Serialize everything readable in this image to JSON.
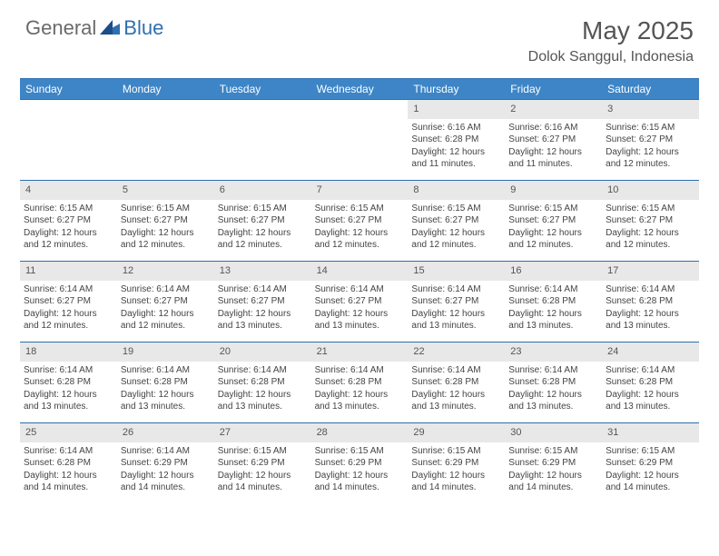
{
  "brand": {
    "part1": "General",
    "part2": "Blue"
  },
  "title": "May 2025",
  "location": "Dolok Sanggul, Indonesia",
  "colors": {
    "header_bg": "#3d85c6",
    "rule": "#2f6fb0",
    "daynum_bg": "#e8e8e8",
    "text": "#444444",
    "title_text": "#555555"
  },
  "day_labels": [
    "Sunday",
    "Monday",
    "Tuesday",
    "Wednesday",
    "Thursday",
    "Friday",
    "Saturday"
  ],
  "weeks": [
    [
      null,
      null,
      null,
      null,
      {
        "n": "1",
        "sr": "Sunrise: 6:16 AM",
        "ss": "Sunset: 6:28 PM",
        "d1": "Daylight: 12 hours",
        "d2": "and 11 minutes."
      },
      {
        "n": "2",
        "sr": "Sunrise: 6:16 AM",
        "ss": "Sunset: 6:27 PM",
        "d1": "Daylight: 12 hours",
        "d2": "and 11 minutes."
      },
      {
        "n": "3",
        "sr": "Sunrise: 6:15 AM",
        "ss": "Sunset: 6:27 PM",
        "d1": "Daylight: 12 hours",
        "d2": "and 12 minutes."
      }
    ],
    [
      {
        "n": "4",
        "sr": "Sunrise: 6:15 AM",
        "ss": "Sunset: 6:27 PM",
        "d1": "Daylight: 12 hours",
        "d2": "and 12 minutes."
      },
      {
        "n": "5",
        "sr": "Sunrise: 6:15 AM",
        "ss": "Sunset: 6:27 PM",
        "d1": "Daylight: 12 hours",
        "d2": "and 12 minutes."
      },
      {
        "n": "6",
        "sr": "Sunrise: 6:15 AM",
        "ss": "Sunset: 6:27 PM",
        "d1": "Daylight: 12 hours",
        "d2": "and 12 minutes."
      },
      {
        "n": "7",
        "sr": "Sunrise: 6:15 AM",
        "ss": "Sunset: 6:27 PM",
        "d1": "Daylight: 12 hours",
        "d2": "and 12 minutes."
      },
      {
        "n": "8",
        "sr": "Sunrise: 6:15 AM",
        "ss": "Sunset: 6:27 PM",
        "d1": "Daylight: 12 hours",
        "d2": "and 12 minutes."
      },
      {
        "n": "9",
        "sr": "Sunrise: 6:15 AM",
        "ss": "Sunset: 6:27 PM",
        "d1": "Daylight: 12 hours",
        "d2": "and 12 minutes."
      },
      {
        "n": "10",
        "sr": "Sunrise: 6:15 AM",
        "ss": "Sunset: 6:27 PM",
        "d1": "Daylight: 12 hours",
        "d2": "and 12 minutes."
      }
    ],
    [
      {
        "n": "11",
        "sr": "Sunrise: 6:14 AM",
        "ss": "Sunset: 6:27 PM",
        "d1": "Daylight: 12 hours",
        "d2": "and 12 minutes."
      },
      {
        "n": "12",
        "sr": "Sunrise: 6:14 AM",
        "ss": "Sunset: 6:27 PM",
        "d1": "Daylight: 12 hours",
        "d2": "and 12 minutes."
      },
      {
        "n": "13",
        "sr": "Sunrise: 6:14 AM",
        "ss": "Sunset: 6:27 PM",
        "d1": "Daylight: 12 hours",
        "d2": "and 13 minutes."
      },
      {
        "n": "14",
        "sr": "Sunrise: 6:14 AM",
        "ss": "Sunset: 6:27 PM",
        "d1": "Daylight: 12 hours",
        "d2": "and 13 minutes."
      },
      {
        "n": "15",
        "sr": "Sunrise: 6:14 AM",
        "ss": "Sunset: 6:27 PM",
        "d1": "Daylight: 12 hours",
        "d2": "and 13 minutes."
      },
      {
        "n": "16",
        "sr": "Sunrise: 6:14 AM",
        "ss": "Sunset: 6:28 PM",
        "d1": "Daylight: 12 hours",
        "d2": "and 13 minutes."
      },
      {
        "n": "17",
        "sr": "Sunrise: 6:14 AM",
        "ss": "Sunset: 6:28 PM",
        "d1": "Daylight: 12 hours",
        "d2": "and 13 minutes."
      }
    ],
    [
      {
        "n": "18",
        "sr": "Sunrise: 6:14 AM",
        "ss": "Sunset: 6:28 PM",
        "d1": "Daylight: 12 hours",
        "d2": "and 13 minutes."
      },
      {
        "n": "19",
        "sr": "Sunrise: 6:14 AM",
        "ss": "Sunset: 6:28 PM",
        "d1": "Daylight: 12 hours",
        "d2": "and 13 minutes."
      },
      {
        "n": "20",
        "sr": "Sunrise: 6:14 AM",
        "ss": "Sunset: 6:28 PM",
        "d1": "Daylight: 12 hours",
        "d2": "and 13 minutes."
      },
      {
        "n": "21",
        "sr": "Sunrise: 6:14 AM",
        "ss": "Sunset: 6:28 PM",
        "d1": "Daylight: 12 hours",
        "d2": "and 13 minutes."
      },
      {
        "n": "22",
        "sr": "Sunrise: 6:14 AM",
        "ss": "Sunset: 6:28 PM",
        "d1": "Daylight: 12 hours",
        "d2": "and 13 minutes."
      },
      {
        "n": "23",
        "sr": "Sunrise: 6:14 AM",
        "ss": "Sunset: 6:28 PM",
        "d1": "Daylight: 12 hours",
        "d2": "and 13 minutes."
      },
      {
        "n": "24",
        "sr": "Sunrise: 6:14 AM",
        "ss": "Sunset: 6:28 PM",
        "d1": "Daylight: 12 hours",
        "d2": "and 13 minutes."
      }
    ],
    [
      {
        "n": "25",
        "sr": "Sunrise: 6:14 AM",
        "ss": "Sunset: 6:28 PM",
        "d1": "Daylight: 12 hours",
        "d2": "and 14 minutes."
      },
      {
        "n": "26",
        "sr": "Sunrise: 6:14 AM",
        "ss": "Sunset: 6:29 PM",
        "d1": "Daylight: 12 hours",
        "d2": "and 14 minutes."
      },
      {
        "n": "27",
        "sr": "Sunrise: 6:15 AM",
        "ss": "Sunset: 6:29 PM",
        "d1": "Daylight: 12 hours",
        "d2": "and 14 minutes."
      },
      {
        "n": "28",
        "sr": "Sunrise: 6:15 AM",
        "ss": "Sunset: 6:29 PM",
        "d1": "Daylight: 12 hours",
        "d2": "and 14 minutes."
      },
      {
        "n": "29",
        "sr": "Sunrise: 6:15 AM",
        "ss": "Sunset: 6:29 PM",
        "d1": "Daylight: 12 hours",
        "d2": "and 14 minutes."
      },
      {
        "n": "30",
        "sr": "Sunrise: 6:15 AM",
        "ss": "Sunset: 6:29 PM",
        "d1": "Daylight: 12 hours",
        "d2": "and 14 minutes."
      },
      {
        "n": "31",
        "sr": "Sunrise: 6:15 AM",
        "ss": "Sunset: 6:29 PM",
        "d1": "Daylight: 12 hours",
        "d2": "and 14 minutes."
      }
    ]
  ]
}
